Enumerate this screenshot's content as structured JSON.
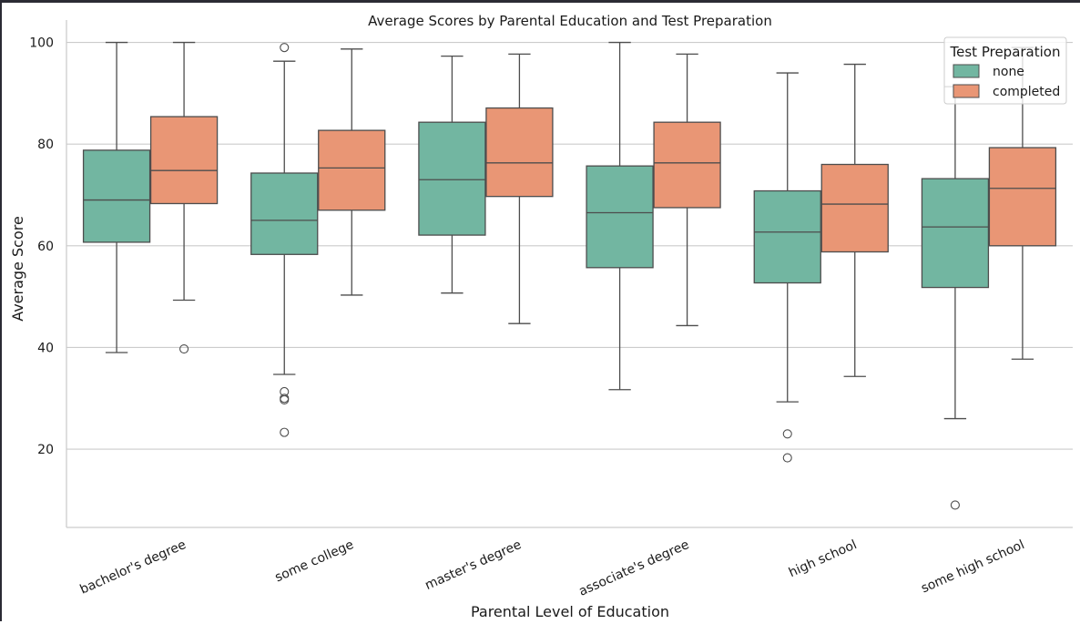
{
  "chart_data": {
    "type": "box",
    "title": "Average Scores by Parental Education and Test Preparation",
    "xlabel": "Parental Level of Education",
    "ylabel": "Average Score",
    "ylim": [
      4.6,
      104.4
    ],
    "yticks": [
      20,
      40,
      60,
      80,
      100
    ],
    "grid": "horizontal",
    "categories": [
      "bachelor's degree",
      "some college",
      "master's degree",
      "associate's degree",
      "high school",
      "some high school"
    ],
    "legend": {
      "title": "Test Preparation",
      "placement": "top-right"
    },
    "colors": {
      "none": "#72b6a1",
      "completed": "#e99675",
      "line": "#4d4d4d",
      "grid": "#cccccc"
    },
    "series": [
      {
        "name": "none",
        "boxes": [
          {
            "whisker_low": 39.0,
            "q1": 60.7,
            "median": 69.0,
            "q3": 78.8,
            "whisker_high": 100.0,
            "outliers": []
          },
          {
            "whisker_low": 34.7,
            "q1": 58.3,
            "median": 65.0,
            "q3": 74.3,
            "whisker_high": 96.3,
            "outliers": [
              99.0,
              31.3,
              30.0,
              29.7,
              23.3
            ]
          },
          {
            "whisker_low": 50.7,
            "q1": 62.1,
            "median": 73.0,
            "q3": 84.3,
            "whisker_high": 97.3,
            "outliers": []
          },
          {
            "whisker_low": 31.7,
            "q1": 55.7,
            "median": 66.5,
            "q3": 75.7,
            "whisker_high": 100.0,
            "outliers": []
          },
          {
            "whisker_low": 29.3,
            "q1": 52.7,
            "median": 62.7,
            "q3": 70.8,
            "whisker_high": 94.0,
            "outliers": [
              23.0,
              18.3
            ]
          },
          {
            "whisker_low": 26.0,
            "q1": 51.8,
            "median": 63.7,
            "q3": 73.2,
            "whisker_high": 91.3,
            "outliers": [
              9.0
            ]
          }
        ]
      },
      {
        "name": "completed",
        "boxes": [
          {
            "whisker_low": 49.3,
            "q1": 68.3,
            "median": 74.8,
            "q3": 85.4,
            "whisker_high": 100.0,
            "outliers": [
              39.7
            ]
          },
          {
            "whisker_low": 50.3,
            "q1": 67.0,
            "median": 75.3,
            "q3": 82.7,
            "whisker_high": 98.7,
            "outliers": []
          },
          {
            "whisker_low": 44.7,
            "q1": 69.7,
            "median": 76.3,
            "q3": 87.1,
            "whisker_high": 97.7,
            "outliers": []
          },
          {
            "whisker_low": 44.3,
            "q1": 67.5,
            "median": 76.3,
            "q3": 84.3,
            "whisker_high": 97.7,
            "outliers": []
          },
          {
            "whisker_low": 34.3,
            "q1": 58.8,
            "median": 68.2,
            "q3": 76.0,
            "whisker_high": 95.7,
            "outliers": []
          },
          {
            "whisker_low": 37.7,
            "q1": 60.0,
            "median": 71.3,
            "q3": 79.3,
            "whisker_high": 99.0,
            "outliers": []
          }
        ]
      }
    ]
  }
}
